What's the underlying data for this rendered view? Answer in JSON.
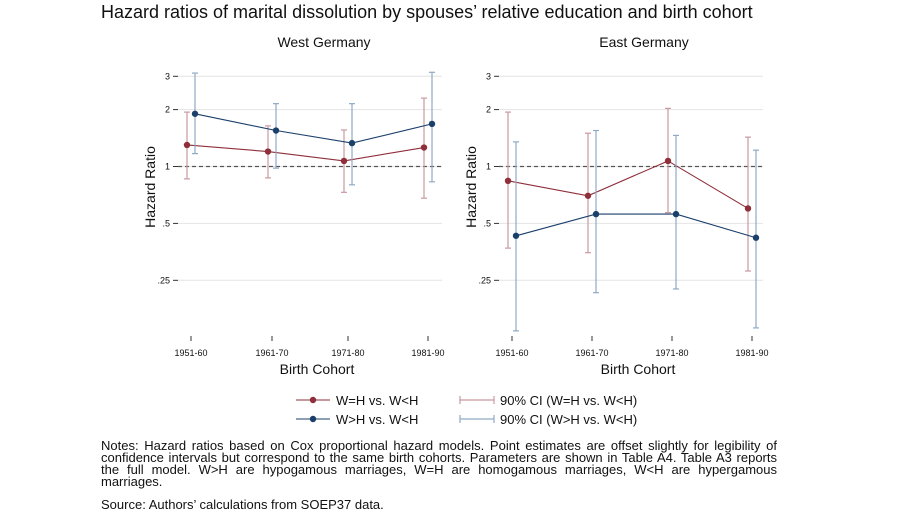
{
  "title": "Hazard ratios of marital dissolution by spouses’ relative education and birth cohort",
  "notes": "Notes: Hazard ratios based on Cox proportional hazard models. Point estimates are offset slightly for legibility of confidence intervals but correspond to the same birth cohorts. Parameters are shown in Table A4. Table A3 reports the full model. W>H are hypogamous marriages, W=H are homogamous marriages, W<H are hypergamous marriages.",
  "source": "Source: Authors’ calculations from SOEP37 data.",
  "colors": {
    "weq": "#8e2f3a",
    "wgt": "#1b3f6b",
    "ci_weq": "#c99aa0",
    "ci_wgt": "#8faac4",
    "ref": "#555555",
    "grid": "#e4e4e4"
  },
  "legend": {
    "items": [
      {
        "label": "W=H vs. W<H",
        "kind": "point",
        "series": "weq"
      },
      {
        "label": "90% CI (W=H vs. W<H)",
        "kind": "ci",
        "series": "weq"
      },
      {
        "label": "W>H vs. W<H",
        "kind": "point",
        "series": "wgt"
      },
      {
        "label": "90% CI (W>H vs. W<H)",
        "kind": "ci",
        "series": "wgt"
      }
    ]
  },
  "chart_data": [
    {
      "type": "scatter",
      "title": "West Germany",
      "xlabel": "Birth Cohort",
      "ylabel": "Hazard Ratio",
      "yscale": "log",
      "ylim": [
        0.13,
        3.2
      ],
      "yticks": [
        0.25,
        0.5,
        1,
        2,
        3
      ],
      "ytick_labels": [
        ".25",
        ".5",
        "1",
        "2",
        "3"
      ],
      "reference_line": 1,
      "categories": [
        "1951-60",
        "1961-70",
        "1971-80",
        "1981-90"
      ],
      "series": [
        {
          "key": "weq",
          "name": "W=H vs. W<H",
          "values": [
            1.3,
            1.2,
            1.07,
            1.26
          ],
          "ci_low": [
            0.86,
            0.87,
            0.73,
            0.68
          ],
          "ci_high": [
            1.94,
            1.64,
            1.56,
            2.3
          ]
        },
        {
          "key": "wgt",
          "name": "W>H vs. W<H",
          "values": [
            1.9,
            1.55,
            1.33,
            1.68
          ],
          "ci_low": [
            1.17,
            0.98,
            0.8,
            0.83
          ],
          "ci_high": [
            3.12,
            2.15,
            2.15,
            3.15
          ]
        }
      ]
    },
    {
      "type": "scatter",
      "title": "East Germany",
      "xlabel": "Birth Cohort",
      "ylabel": "Hazard Ratio",
      "yscale": "log",
      "ylim": [
        0.13,
        3.2
      ],
      "yticks": [
        0.25,
        0.5,
        1,
        2,
        3
      ],
      "ytick_labels": [
        ".25",
        ".5",
        "1",
        "2",
        "3"
      ],
      "reference_line": 1,
      "categories": [
        "1951-60",
        "1961-70",
        "1971-80",
        "1981-90"
      ],
      "series": [
        {
          "key": "weq",
          "name": "W=H vs. W<H",
          "values": [
            0.84,
            0.7,
            1.07,
            0.6
          ],
          "ci_low": [
            0.37,
            0.35,
            0.57,
            0.28
          ],
          "ci_high": [
            1.94,
            1.5,
            2.03,
            1.43
          ]
        },
        {
          "key": "wgt",
          "name": "W>H vs. W<H",
          "values": [
            0.43,
            0.56,
            0.56,
            0.42
          ],
          "ci_low": [
            0.135,
            0.215,
            0.225,
            0.14
          ],
          "ci_high": [
            1.35,
            1.55,
            1.46,
            1.22
          ]
        }
      ]
    }
  ]
}
